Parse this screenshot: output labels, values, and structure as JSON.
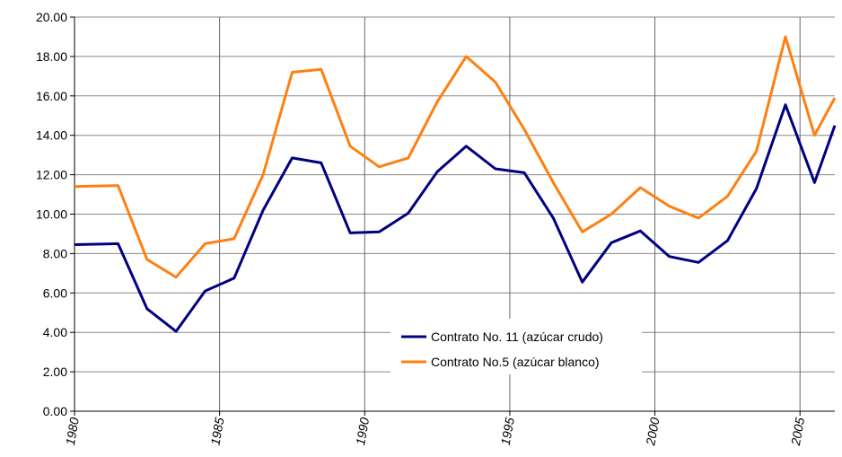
{
  "chart_data": {
    "type": "line",
    "x": [
      1980,
      1981.5,
      1982.5,
      1983.5,
      1984.5,
      1985.5,
      1986.5,
      1987.5,
      1988.5,
      1989.5,
      1990.5,
      1991.5,
      1992.5,
      1993.5,
      1994.5,
      1995.5,
      1996.5,
      1997.5,
      1998.5,
      1999.5,
      2000.5,
      2001.5,
      2002.5,
      2003.5,
      2004.5,
      2005.5,
      2006.2
    ],
    "series": [
      {
        "name": "Contrato No. 11 (azúcar crudo)",
        "color": "#000080",
        "values": [
          8.45,
          8.5,
          5.2,
          4.05,
          6.1,
          6.75,
          10.2,
          12.85,
          12.6,
          9.05,
          9.1,
          10.05,
          12.15,
          13.45,
          12.3,
          12.1,
          9.8,
          6.55,
          8.55,
          9.15,
          7.85,
          7.55,
          8.65,
          11.3,
          15.55,
          11.6,
          14.5
        ]
      },
      {
        "name": "Contrato No.5 (azúcar blanco)",
        "color": "#ff7f11",
        "values": [
          11.4,
          11.45,
          7.7,
          6.8,
          8.5,
          8.75,
          12.0,
          17.2,
          17.35,
          13.45,
          12.4,
          12.85,
          15.7,
          18.0,
          16.7,
          14.3,
          11.6,
          9.1,
          10.0,
          11.35,
          10.4,
          9.8,
          10.9,
          13.2,
          19.0,
          14.0,
          15.9
        ]
      }
    ],
    "xlim": [
      1980,
      2006.2
    ],
    "xticks": [
      1980,
      1985,
      1990,
      1995,
      2000,
      2005
    ],
    "ylim": [
      0,
      20
    ],
    "yticks": [
      {
        "value": 0,
        "label": "0.00"
      },
      {
        "value": 2,
        "label": "2.00"
      },
      {
        "value": 4,
        "label": "4.00"
      },
      {
        "value": 6,
        "label": "6.00"
      },
      {
        "value": 8,
        "label": "8.00"
      },
      {
        "value": 10,
        "label": "10.00"
      },
      {
        "value": 12,
        "label": "12.00"
      },
      {
        "value": 14,
        "label": "14.00"
      },
      {
        "value": 16,
        "label": "16.00"
      },
      {
        "value": 18,
        "label": "18.00"
      },
      {
        "value": 20,
        "label": "20.00"
      }
    ],
    "grid": true
  }
}
